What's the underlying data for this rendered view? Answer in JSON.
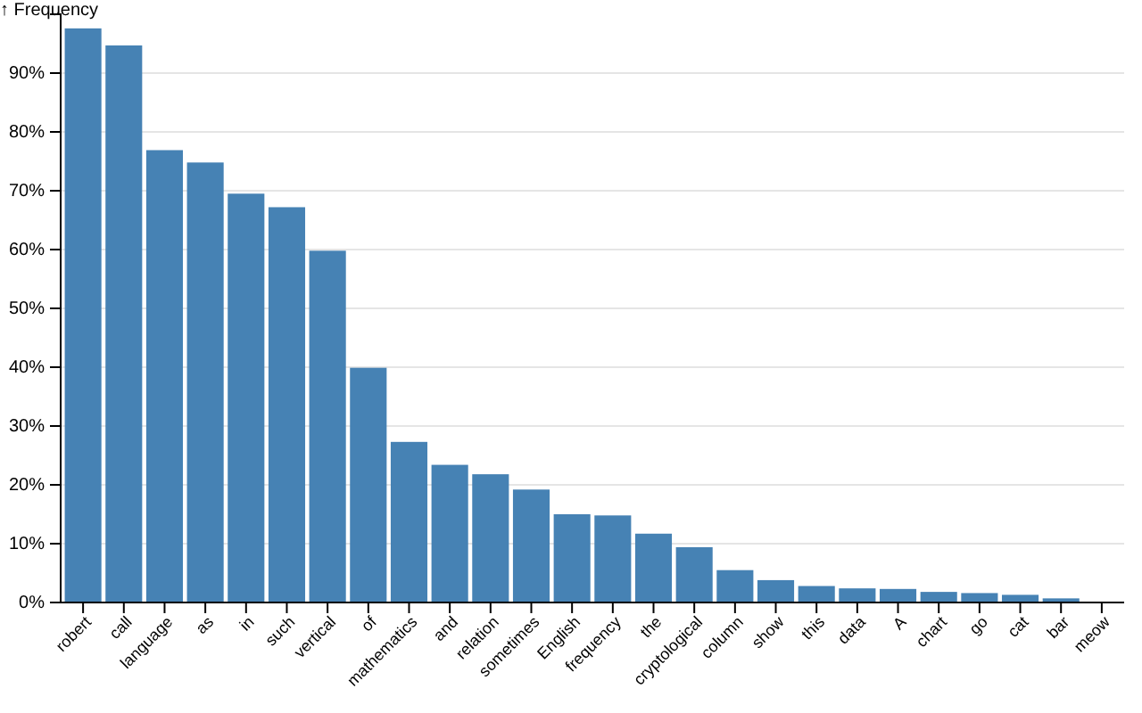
{
  "chart_data": {
    "type": "bar",
    "ylabel": "↑ Frequency",
    "categories": [
      "robert",
      "call",
      "language",
      "as",
      "in",
      "such",
      "vertical",
      "of",
      "mathematics",
      "and",
      "relation",
      "sometimes",
      "English",
      "frequency",
      "the",
      "cryptological",
      "column",
      "show",
      "this",
      "data",
      "A",
      "chart",
      "go",
      "cat",
      "bar",
      "meow"
    ],
    "values": [
      97.6,
      94.7,
      76.9,
      74.8,
      69.5,
      67.2,
      59.8,
      39.9,
      27.3,
      23.4,
      21.8,
      19.2,
      15.0,
      14.8,
      11.7,
      9.4,
      5.5,
      3.8,
      2.8,
      2.4,
      2.3,
      1.8,
      1.6,
      1.3,
      0.7,
      0
    ],
    "color": "#4682b4",
    "ylim": [
      0,
      100
    ],
    "yticks": [
      {
        "value": 0,
        "label": "0%"
      },
      {
        "value": 10,
        "label": "10%"
      },
      {
        "value": 20,
        "label": "20%"
      },
      {
        "value": 30,
        "label": "30%"
      },
      {
        "value": 40,
        "label": "40%"
      },
      {
        "value": 50,
        "label": "50%"
      },
      {
        "value": 60,
        "label": "60%"
      },
      {
        "value": 70,
        "label": "70%"
      },
      {
        "value": 80,
        "label": "80%"
      },
      {
        "value": 90,
        "label": "90%"
      }
    ],
    "grid": "y"
  }
}
